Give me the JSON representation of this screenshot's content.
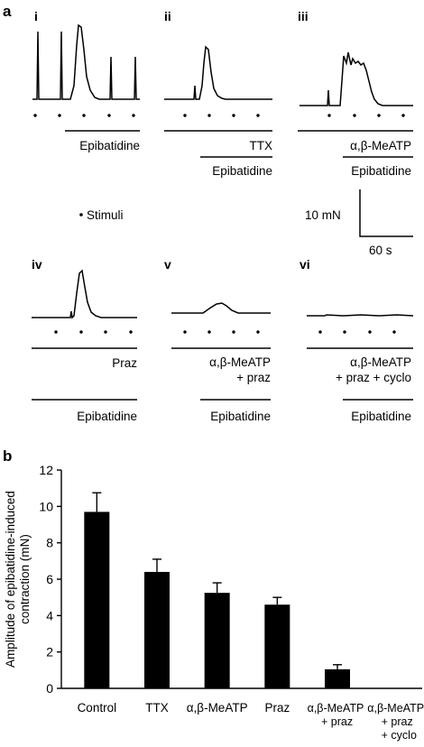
{
  "panel_a": {
    "letter": "a",
    "stimuli_label": "Stimuli",
    "scale_bar": {
      "y_label": "10 mN",
      "x_label": "60 s"
    },
    "traces": [
      {
        "numeral": "i",
        "labels": [
          "Epibatidine"
        ]
      },
      {
        "numeral": "ii",
        "labels": [
          "TTX",
          "Epibatidine"
        ]
      },
      {
        "numeral": "iii",
        "labels": [
          "α,β-MeATP",
          "Epibatidine"
        ]
      },
      {
        "numeral": "iv",
        "labels": [
          "Praz",
          "Epibatidine"
        ]
      },
      {
        "numeral": "v",
        "labels": [
          "α,β-MeATP",
          "+ praz",
          "Epibatidine"
        ]
      },
      {
        "numeral": "vi",
        "labels": [
          "α,β-MeATP",
          "+ praz + cyclo",
          "Epibatidine"
        ]
      }
    ]
  },
  "panel_b": {
    "letter": "b",
    "chart_data": {
      "type": "bar",
      "ylabel_lines": [
        "Amplitude of epibatidine-induced",
        "contraction (mN)"
      ],
      "ylim": [
        0,
        12
      ],
      "yticks": [
        "0",
        "2",
        "4",
        "6",
        "8",
        "10",
        "12"
      ],
      "categories": [
        [
          "Control"
        ],
        [
          "TTX"
        ],
        [
          "α,β-MeATP"
        ],
        [
          "Praz"
        ],
        [
          "α,β-MeATP",
          "+ praz"
        ],
        [
          "α,β-MeATP",
          "+ praz",
          "+ cyclo"
        ]
      ],
      "values": [
        9.7,
        6.4,
        5.25,
        4.6,
        1.05,
        0
      ],
      "errors": [
        1.05,
        0.7,
        0.55,
        0.4,
        0.25,
        0
      ],
      "bar_color": "#000000"
    }
  }
}
